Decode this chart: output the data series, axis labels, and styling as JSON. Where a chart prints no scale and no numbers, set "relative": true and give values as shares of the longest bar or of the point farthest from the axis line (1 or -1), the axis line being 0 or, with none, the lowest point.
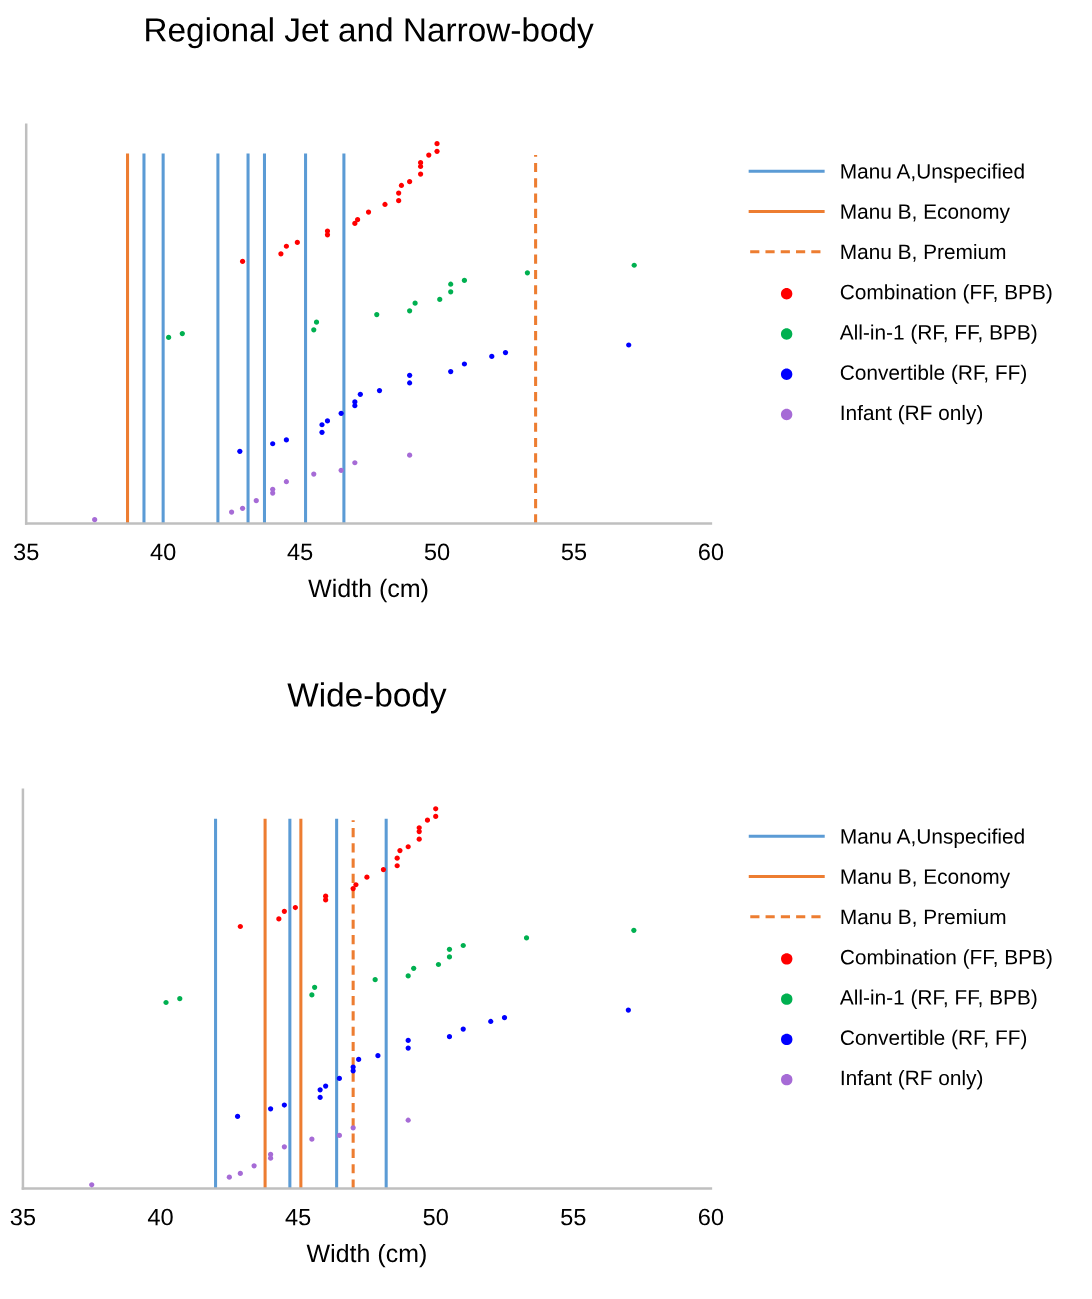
{
  "chart_data": [
    {
      "type": "scatter",
      "title": "Regional Jet and Narrow-body",
      "xlabel": "Width (cm)",
      "xlim": [
        35,
        60
      ],
      "xticks": [
        35,
        40,
        45,
        50,
        55,
        60
      ],
      "relative": true,
      "tick_labels": "x",
      "legend": "right",
      "marker": "circle",
      "series": [
        {
          "name": "Manu A,Unspecified",
          "type": "line",
          "line_style": "solid",
          "marker": "none",
          "color": "#5b9bd5",
          "x": [
            39.3,
            39.3,
            null,
            40.0,
            40.0,
            null,
            42.0,
            42.0,
            null,
            43.1,
            43.1,
            null,
            43.7,
            43.7,
            null,
            45.2,
            45.2,
            null,
            46.6,
            46.6
          ],
          "values": [
            0,
            0.97,
            null,
            0,
            0.97,
            null,
            0,
            0.97,
            null,
            0,
            0.97,
            null,
            0,
            0.97,
            null,
            0,
            0.97,
            null,
            0,
            0.97
          ]
        },
        {
          "name": "Manu B, Economy",
          "type": "line",
          "line_style": "solid",
          "marker": "none",
          "color": "#ed7d31",
          "x": [
            38.7,
            38.7
          ],
          "values": [
            0,
            0.97
          ]
        },
        {
          "name": "Manu B, Premium",
          "type": "line",
          "line_style": "dashed",
          "marker": "none",
          "color": "#ed7d31",
          "x": [
            53.6,
            53.6
          ],
          "values": [
            0,
            0.97
          ]
        },
        {
          "name": "Combination (FF, BPB)",
          "color": "#ff0000",
          "x": [
            42.9,
            44.3,
            44.5,
            44.9,
            46.0,
            46.0,
            47.0,
            47.1,
            47.5,
            48.1,
            48.6,
            48.6,
            48.7,
            49.0,
            49.4,
            49.4,
            49.4,
            49.7,
            50.0,
            50.0
          ],
          "values": [
            0.69,
            0.71,
            0.73,
            0.74,
            0.76,
            0.77,
            0.79,
            0.8,
            0.82,
            0.84,
            0.85,
            0.87,
            0.89,
            0.9,
            0.92,
            0.94,
            0.95,
            0.97,
            0.98,
            1.0
          ]
        },
        {
          "name": "All-in-1 (RF, FF, BPB)",
          "color": "#00b050",
          "x": [
            40.2,
            40.7,
            45.5,
            45.6,
            47.8,
            49.0,
            49.2,
            50.1,
            50.5,
            50.5,
            51.0,
            53.3,
            57.2
          ],
          "values": [
            0.49,
            0.5,
            0.51,
            0.53,
            0.55,
            0.56,
            0.58,
            0.59,
            0.61,
            0.63,
            0.64,
            0.66,
            0.68
          ]
        },
        {
          "name": "Convertible (RF, FF)",
          "color": "#0000ff",
          "x": [
            42.8,
            44.0,
            44.5,
            45.8,
            45.8,
            46.0,
            46.5,
            47.0,
            47.0,
            47.2,
            47.9,
            49.0,
            49.0,
            50.5,
            51.0,
            52.0,
            52.5,
            57.0
          ],
          "values": [
            0.19,
            0.21,
            0.22,
            0.24,
            0.26,
            0.27,
            0.29,
            0.31,
            0.32,
            0.34,
            0.35,
            0.37,
            0.39,
            0.4,
            0.42,
            0.44,
            0.45,
            0.47
          ]
        },
        {
          "name": "Infant (RF only)",
          "color": "#a66bd6",
          "x": [
            37.5,
            42.5,
            42.9,
            43.4,
            44.0,
            44.0,
            44.5,
            45.5,
            46.5,
            47.0,
            49.0
          ],
          "values": [
            0.01,
            0.03,
            0.04,
            0.06,
            0.08,
            0.09,
            0.11,
            0.13,
            0.14,
            0.16,
            0.18
          ]
        }
      ]
    },
    {
      "type": "scatter",
      "title": "Wide-body",
      "xlabel": "Width (cm)",
      "xlim": [
        35,
        60
      ],
      "xticks": [
        35,
        40,
        45,
        50,
        55,
        60
      ],
      "relative": true,
      "tick_labels": "x",
      "legend": "right",
      "marker": "circle",
      "series": [
        {
          "name": "Manu A,Unspecified",
          "type": "line",
          "line_style": "solid",
          "marker": "none",
          "color": "#5b9bd5",
          "x": [
            42.0,
            42.0,
            null,
            44.7,
            44.7,
            null,
            46.4,
            46.4,
            null,
            48.2,
            48.2
          ],
          "values": [
            0,
            0.97,
            null,
            0,
            0.97,
            null,
            0,
            0.97,
            null,
            0,
            0.97
          ]
        },
        {
          "name": "Manu B, Economy",
          "type": "line",
          "line_style": "solid",
          "marker": "none",
          "color": "#ed7d31",
          "x": [
            43.8,
            43.8,
            null,
            45.1,
            45.1
          ],
          "values": [
            0,
            0.97,
            null,
            0,
            0.97
          ]
        },
        {
          "name": "Manu B, Premium",
          "type": "line",
          "line_style": "dashed",
          "marker": "none",
          "color": "#ed7d31",
          "x": [
            47.0,
            47.0
          ],
          "values": [
            0,
            0.97
          ]
        },
        {
          "name": "Combination (FF, BPB)",
          "color": "#ff0000",
          "x": [
            42.9,
            44.3,
            44.5,
            44.9,
            46.0,
            46.0,
            47.0,
            47.1,
            47.5,
            48.1,
            48.6,
            48.6,
            48.7,
            49.0,
            49.4,
            49.4,
            49.4,
            49.7,
            50.0,
            50.0
          ],
          "values": [
            0.69,
            0.71,
            0.73,
            0.74,
            0.76,
            0.77,
            0.79,
            0.8,
            0.82,
            0.84,
            0.85,
            0.87,
            0.89,
            0.9,
            0.92,
            0.94,
            0.95,
            0.97,
            0.98,
            1.0
          ]
        },
        {
          "name": "All-in-1 (RF, FF, BPB)",
          "color": "#00b050",
          "x": [
            40.2,
            40.7,
            45.5,
            45.6,
            47.8,
            49.0,
            49.2,
            50.1,
            50.5,
            50.5,
            51.0,
            53.3,
            57.2
          ],
          "values": [
            0.49,
            0.5,
            0.51,
            0.53,
            0.55,
            0.56,
            0.58,
            0.59,
            0.61,
            0.63,
            0.64,
            0.66,
            0.68
          ]
        },
        {
          "name": "Convertible (RF, FF)",
          "color": "#0000ff",
          "x": [
            42.8,
            44.0,
            44.5,
            45.8,
            45.8,
            46.0,
            46.5,
            47.0,
            47.0,
            47.2,
            47.9,
            49.0,
            49.0,
            50.5,
            51.0,
            52.0,
            52.5,
            57.0
          ],
          "values": [
            0.19,
            0.21,
            0.22,
            0.24,
            0.26,
            0.27,
            0.29,
            0.31,
            0.32,
            0.34,
            0.35,
            0.37,
            0.39,
            0.4,
            0.42,
            0.44,
            0.45,
            0.47
          ]
        },
        {
          "name": "Infant (RF only)",
          "color": "#a66bd6",
          "x": [
            37.5,
            42.5,
            42.9,
            43.4,
            44.0,
            44.0,
            44.5,
            45.5,
            46.5,
            47.0,
            49.0
          ],
          "values": [
            0.01,
            0.03,
            0.04,
            0.06,
            0.08,
            0.09,
            0.11,
            0.13,
            0.14,
            0.16,
            0.18
          ]
        }
      ]
    }
  ]
}
